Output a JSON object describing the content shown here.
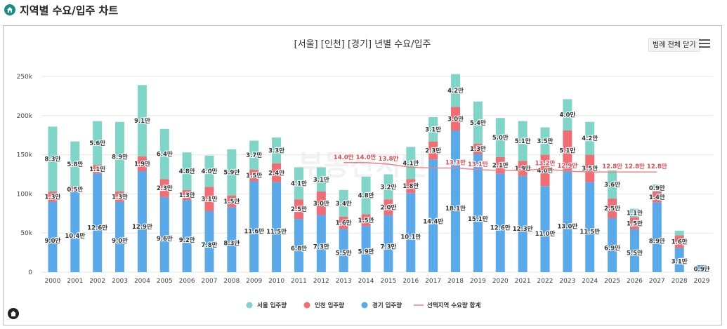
{
  "header": {
    "title": "지역별 수요/입주 차트",
    "icon": "home-icon"
  },
  "toolbar": {
    "legend_toggle_label": "범례 전체 닫기",
    "menu_icon": "hamburger-menu-icon"
  },
  "watermark": "부동산지인",
  "colors": {
    "seoul": "#7fd6c8",
    "incheon": "#f26d73",
    "gyeonggi": "#5aa9ea",
    "demand_line": "#ef7f7f",
    "demand_label": "#e8484e",
    "brand": "#1a8c8c"
  },
  "chart_data": {
    "type": "bar",
    "stacked": true,
    "title": "[서울] [인천] [경기] 년별 수요/입주",
    "categories": [
      "2000",
      "2001",
      "2002",
      "2003",
      "2004",
      "2005",
      "2006",
      "2007",
      "2008",
      "2009",
      "2010",
      "2011",
      "2012",
      "2013",
      "2014",
      "2015",
      "2016",
      "2017",
      "2018",
      "2019",
      "2020",
      "2021",
      "2022",
      "2023",
      "2024",
      "2025",
      "2026",
      "2027",
      "2028",
      "2029"
    ],
    "ylim": [
      0,
      250000
    ],
    "yticks": [
      0,
      50000,
      100000,
      150000,
      200000,
      250000
    ],
    "ytick_labels": [
      "0",
      "50k",
      "100k",
      "150k",
      "200k",
      "250k"
    ],
    "grid": true,
    "legend_position": "bottom",
    "series": [
      {
        "name": "경기 입주량",
        "key": "gyeonggi",
        "kind": "bar",
        "values": [
          90000,
          104000,
          126000,
          90000,
          129000,
          96000,
          92000,
          78000,
          83000,
          116000,
          115000,
          68000,
          73000,
          55000,
          59000,
          73000,
          101000,
          144000,
          181000,
          151000,
          126000,
          123000,
          110000,
          130000,
          115000,
          69000,
          55000,
          89000,
          31000,
          9000
        ],
        "labels": [
          "9.0만",
          "10.4만",
          "12.6만",
          "9.0만",
          "12.9만",
          "9.6만",
          "9.2만",
          "7.8만",
          "8.3만",
          "11.6만",
          "11.5만",
          "6.8만",
          "7.3만",
          "5.5만",
          "5.9만",
          "7.3만",
          "10.1만",
          "14.4만",
          "18.1만",
          "15.1만",
          "12.6만",
          "12.3만",
          "11.0만",
          "13.0만",
          "11.5만",
          "6.9만",
          "5.5만",
          "8.9만",
          "3.1만",
          "0.9만"
        ]
      },
      {
        "name": "인천 입주량",
        "key": "incheon",
        "kind": "bar",
        "values": [
          13000,
          5000,
          11000,
          13000,
          19000,
          23000,
          13000,
          31000,
          15000,
          15000,
          24000,
          25000,
          30000,
          16000,
          15000,
          20000,
          18000,
          23000,
          30000,
          13000,
          21000,
          19000,
          40000,
          51000,
          35000,
          25000,
          15000,
          14000,
          16000,
          0
        ],
        "labels": [
          "1.3만",
          "0.5만",
          "1.1만",
          "1.3만",
          "1.9만",
          "2.3만",
          "1.3만",
          "3.1만",
          "1.5만",
          "1.5만",
          "2.4만",
          "2.5만",
          "3.0만",
          "1.6만",
          "1.5만",
          "2.0만",
          "1.8만",
          "2.3만",
          "3.0만",
          "1.3만",
          "2.1만",
          "1.9만",
          "4.0만",
          "5.1만",
          "3.5만",
          "2.5만",
          "1.5만",
          "1.4만",
          "1.6만",
          ""
        ]
      },
      {
        "name": "서울 입주량",
        "key": "seoul",
        "kind": "bar",
        "values": [
          83000,
          58000,
          56000,
          89000,
          91000,
          64000,
          48000,
          40000,
          59000,
          37000,
          33000,
          41000,
          31000,
          34000,
          48000,
          32000,
          41000,
          31000,
          42000,
          54000,
          50000,
          51000,
          35000,
          40000,
          42000,
          36000,
          11000,
          9000,
          6000,
          0
        ],
        "labels": [
          "8.3만",
          "5.8만",
          "5.6만",
          "8.9만",
          "9.1만",
          "6.4만",
          "4.8만",
          "4.0만",
          "5.9만",
          "3.7만",
          "3.3만",
          "4.1만",
          "3.1만",
          "3.4만",
          "4.8만",
          "3.2만",
          "4.1만",
          "3.1만",
          "4.2만",
          "5.4만",
          "5.0만",
          "5.1만",
          "3.5만",
          "4.0만",
          "4.2만",
          "3.6만",
          "1.1만",
          "0.9만",
          "",
          ""
        ]
      },
      {
        "name": "선택지역 수요량 합계",
        "key": "demand",
        "kind": "line",
        "values": [
          null,
          null,
          null,
          null,
          null,
          null,
          null,
          null,
          null,
          null,
          null,
          null,
          null,
          140000,
          140000,
          138000,
          134000,
          133000,
          133000,
          131000,
          130000,
          130000,
          132000,
          129000,
          128000,
          128000,
          128000,
          128000,
          null,
          null
        ],
        "labels": [
          "",
          "",
          "",
          "",
          "",
          "",
          "",
          "",
          "",
          "",
          "",
          "",
          "",
          "14.0만",
          "14.0만",
          "13.8만",
          "",
          "",
          "13.3만",
          "13.1만",
          "",
          "",
          "13.2만",
          "12.9만",
          "",
          "12.8만",
          "12.8만",
          "12.8만",
          "",
          ""
        ]
      }
    ]
  }
}
